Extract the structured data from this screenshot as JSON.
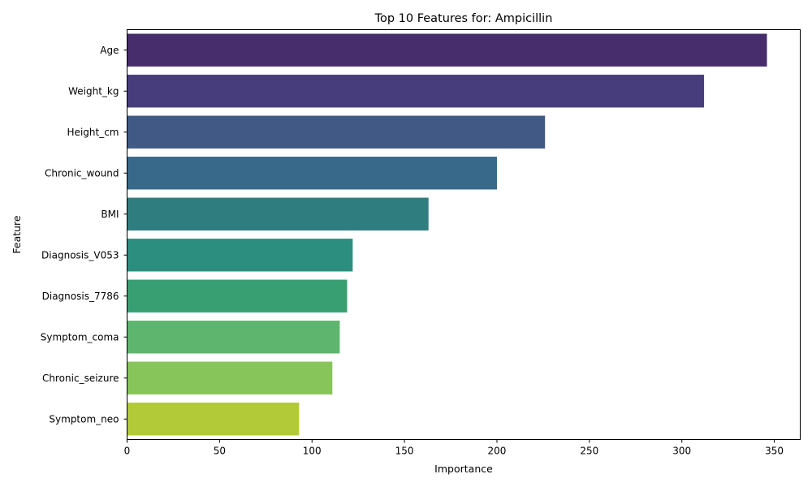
{
  "chart_data": {
    "type": "bar",
    "orientation": "horizontal",
    "title": "Top 10 Features for: Ampicillin",
    "xlabel": "Importance",
    "ylabel": "Feature",
    "categories": [
      "Age",
      "Weight_kg",
      "Height_cm",
      "Chronic_wound",
      "BMI",
      "Diagnosis_V053",
      "Diagnosis_7786",
      "Symptom_coma",
      "Chronic_seizure",
      "Symptom_neo"
    ],
    "values": [
      346,
      312,
      226,
      200,
      163,
      122,
      119,
      115,
      111,
      93
    ],
    "colors": [
      "#472D6B",
      "#483D7C",
      "#405A85",
      "#38698A",
      "#307D80",
      "#2B8E7F",
      "#379F72",
      "#5EB66E",
      "#87C55A",
      "#B2C938"
    ],
    "xlim": [
      0,
      364
    ],
    "xticks": [
      0,
      50,
      100,
      150,
      200,
      250,
      300,
      350
    ],
    "grid": false,
    "legend": "none"
  }
}
